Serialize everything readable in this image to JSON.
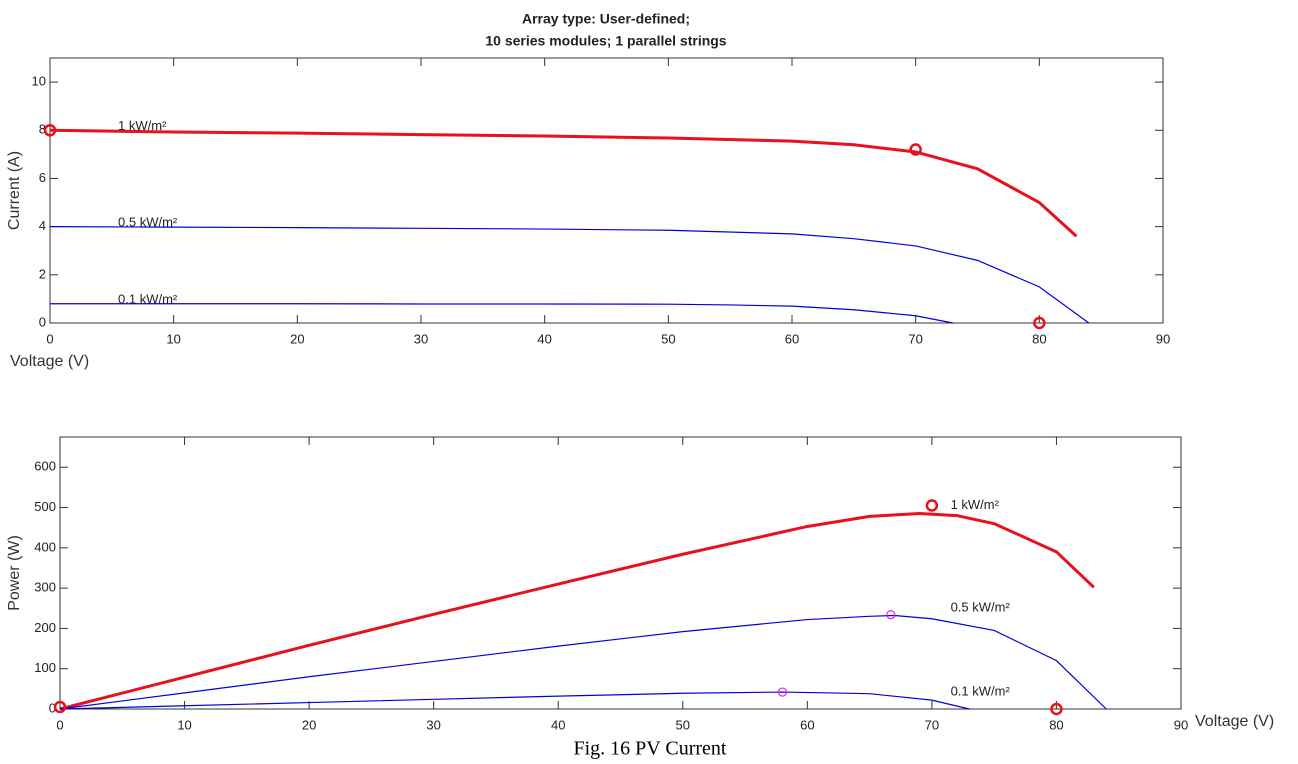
{
  "chart_data": [
    {
      "type": "line",
      "title": "Array type: User-defined;",
      "subtitle": "10 series modules; 1 parallel strings",
      "xlabel": "Voltage (V)",
      "ylabel": "Current (A)",
      "xlim": [
        0,
        90
      ],
      "xticks": [
        0,
        10,
        20,
        30,
        40,
        50,
        60,
        70,
        80,
        90
      ],
      "ylim": [
        0,
        11
      ],
      "yticks": [
        0,
        2,
        4,
        6,
        8,
        10
      ],
      "series": [
        {
          "name": "1 kW/m²",
          "color": "#e8101a",
          "x": [
            0,
            10,
            20,
            30,
            40,
            50,
            60,
            65,
            70,
            75,
            80,
            83
          ],
          "values": [
            8,
            7.93,
            7.88,
            7.82,
            7.76,
            7.68,
            7.55,
            7.4,
            7.1,
            6.4,
            5.0,
            3.6
          ]
        },
        {
          "name": "0.5 kW/m²",
          "color": "#0000e0",
          "x": [
            0,
            10,
            20,
            30,
            40,
            50,
            60,
            65,
            70,
            75,
            80,
            84
          ],
          "values": [
            4,
            3.98,
            3.96,
            3.93,
            3.9,
            3.85,
            3.7,
            3.5,
            3.2,
            2.6,
            1.5,
            0
          ]
        },
        {
          "name": "0.1 kW/m²",
          "color": "#0000e0",
          "x": [
            0,
            10,
            20,
            30,
            40,
            50,
            55,
            60,
            65,
            70,
            73
          ],
          "values": [
            0.8,
            0.8,
            0.8,
            0.79,
            0.79,
            0.78,
            0.75,
            0.7,
            0.55,
            0.3,
            0
          ]
        }
      ],
      "markers": [
        {
          "color": "#e8101a",
          "x": [
            0,
            70,
            80
          ],
          "values": [
            8,
            7.2,
            0
          ]
        }
      ]
    },
    {
      "type": "line",
      "xlabel": "Voltage (V)",
      "ylabel": "Power (W)",
      "xlim": [
        0,
        90
      ],
      "xticks": [
        0,
        10,
        20,
        30,
        40,
        50,
        60,
        70,
        80,
        90
      ],
      "ylim": [
        0,
        675
      ],
      "yticks": [
        0,
        100,
        200,
        300,
        400,
        500,
        600
      ],
      "series": [
        {
          "name": "1 kW/m²",
          "color": "#e8101a",
          "x": [
            0,
            10,
            20,
            30,
            40,
            50,
            60,
            65,
            69,
            72,
            75,
            80,
            83
          ],
          "values": [
            0,
            79,
            158,
            235,
            310,
            384,
            453,
            478,
            485,
            480,
            460,
            390,
            302
          ]
        },
        {
          "name": "0.5 kW/m²",
          "color": "#0000e0",
          "x": [
            0,
            10,
            20,
            30,
            40,
            50,
            60,
            65,
            67,
            70,
            75,
            80,
            84
          ],
          "values": [
            0,
            40,
            80,
            118,
            156,
            192,
            222,
            230,
            232,
            224,
            195,
            120,
            0
          ]
        },
        {
          "name": "0.1 kW/m²",
          "color": "#0000e0",
          "x": [
            0,
            10,
            20,
            30,
            40,
            50,
            58,
            65,
            70,
            73
          ],
          "values": [
            0,
            8,
            16,
            24,
            32,
            39,
            42,
            38,
            22,
            0
          ]
        }
      ],
      "markers": [
        {
          "color": "#e8101a",
          "x": [
            0,
            70,
            80
          ],
          "values": [
            5,
            505,
            0
          ]
        },
        {
          "color": "#e020e0",
          "x": [
            66.7,
            58
          ],
          "values": [
            234,
            42
          ]
        }
      ]
    }
  ],
  "caption": "Fig. 16 PV Current"
}
